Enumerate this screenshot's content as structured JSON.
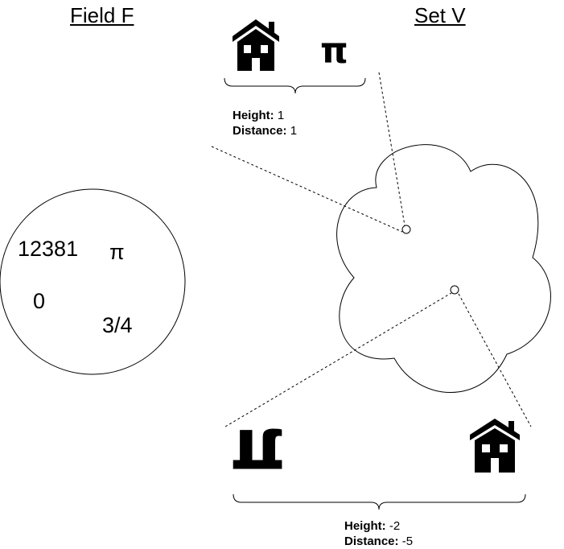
{
  "field": {
    "title": "Field F",
    "elements": [
      "12381",
      "π",
      "0",
      "3/4"
    ]
  },
  "set": {
    "title": "Set V"
  },
  "vector_top": {
    "icon": "house-icon",
    "symbol": "π",
    "height_label": "Height:",
    "height_value": "1",
    "distance_label": "Distance:",
    "distance_value": "1"
  },
  "vector_bottom": {
    "symbol": "π",
    "icon": "house-icon",
    "height_label": "Height:",
    "height_value": "-2",
    "distance_label": "Distance:",
    "distance_value": "-5"
  },
  "colors": {
    "stroke": "#000000",
    "background": "#ffffff"
  }
}
